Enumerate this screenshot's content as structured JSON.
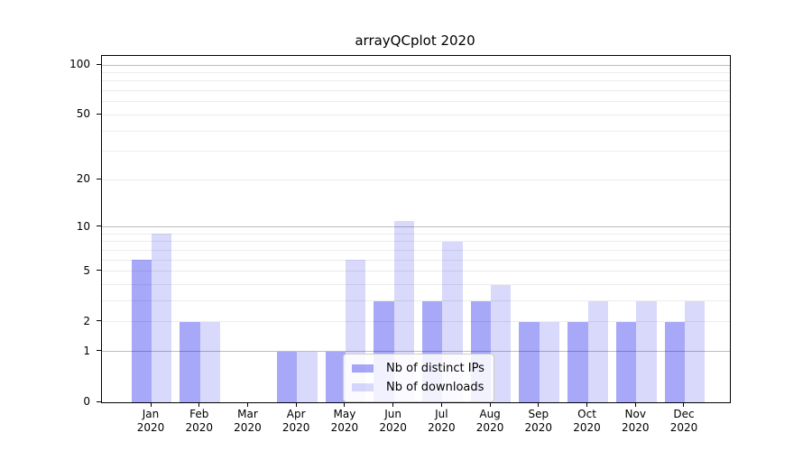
{
  "title": "arrayQCplot 2020",
  "colors": {
    "bar_dark": "rgba(0,0,234,0.34)",
    "bar_light": "rgba(0,0,234,0.15)",
    "grid_major": "#bdbdbd",
    "grid_minor": "#ececec",
    "axis": "#000000",
    "legend_border": "#cccccc"
  },
  "legend": {
    "items": [
      {
        "label": "Nb of distinct IPs",
        "color": "rgba(0,0,234,0.34)"
      },
      {
        "label": "Nb of downloads",
        "color": "rgba(0,0,234,0.15)"
      }
    ]
  },
  "chart_data": {
    "type": "bar",
    "title": "arrayQCplot 2020",
    "categories": [
      "Jan 2020",
      "Feb 2020",
      "Mar 2020",
      "Apr 2020",
      "May 2020",
      "Jun 2020",
      "Jul 2020",
      "Aug 2020",
      "Sep 2020",
      "Oct 2020",
      "Nov 2020",
      "Dec 2020"
    ],
    "category_line1": [
      "Jan",
      "Feb",
      "Mar",
      "Apr",
      "May",
      "Jun",
      "Jul",
      "Aug",
      "Sep",
      "Oct",
      "Nov",
      "Dec"
    ],
    "category_line2": [
      "2020",
      "2020",
      "2020",
      "2020",
      "2020",
      "2020",
      "2020",
      "2020",
      "2020",
      "2020",
      "2020",
      "2020"
    ],
    "series": [
      {
        "name": "Nb of distinct IPs",
        "color": "rgba(0,0,234,0.34)",
        "values": [
          6,
          2,
          0,
          1,
          1,
          3,
          3,
          3,
          2,
          2,
          2,
          2
        ]
      },
      {
        "name": "Nb of downloads",
        "color": "rgba(0,0,234,0.15)",
        "values": [
          9,
          2,
          0,
          1,
          6,
          11,
          8,
          4,
          2,
          3,
          3,
          3
        ]
      }
    ],
    "xlabel": "",
    "ylabel": "",
    "yscale": "log10(1+y)",
    "ylim": [
      0,
      113
    ],
    "y_tick_values": [
      0,
      1,
      2,
      5,
      10,
      20,
      50,
      100
    ],
    "y_major_gridlines": [
      1,
      10,
      100
    ],
    "y_minor_gridlines": [
      2,
      3,
      4,
      5,
      6,
      7,
      8,
      9,
      20,
      30,
      40,
      50,
      60,
      70,
      80,
      90
    ],
    "grid": "horizontal",
    "legend_position": "lower center"
  }
}
